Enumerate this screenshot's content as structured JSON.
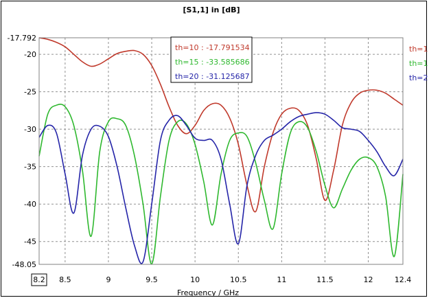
{
  "chart_data": {
    "type": "line",
    "title": "[S1,1] in [dB]",
    "xlabel": "Frequency / GHz",
    "ylabel": "",
    "xlim": [
      8.2,
      12.4
    ],
    "ylim": [
      -48.05,
      -17.792
    ],
    "x_ticks": [
      "8.2",
      "8.5",
      "9",
      "9.5",
      "10",
      "10.5",
      "11",
      "11.5",
      "12",
      "12.4"
    ],
    "x_tick_values": [
      8.2,
      8.5,
      9,
      9.5,
      10,
      10.5,
      11,
      11.5,
      12,
      12.4
    ],
    "y_ticks": [
      "-17.792",
      "-20",
      "-25",
      "-30",
      "-35",
      "-40",
      "-45",
      "-48.05"
    ],
    "y_tick_values": [
      -17.792,
      -20,
      -25,
      -30,
      -35,
      -40,
      -45,
      -48.05
    ],
    "grid": true,
    "legend_position": "right",
    "annotation_box": [
      {
        "text": "th=10 : -17.791534",
        "color": "#c0392b"
      },
      {
        "text": "th=15 : -33.585686",
        "color": "#2eb82e"
      },
      {
        "text": "th=20 : -31.125687",
        "color": "#2424a8"
      }
    ],
    "series": [
      {
        "name": "th=10",
        "color": "#c0392b",
        "x": [
          8.2,
          8.3,
          8.4,
          8.5,
          8.6,
          8.7,
          8.8,
          8.9,
          9.0,
          9.1,
          9.2,
          9.3,
          9.4,
          9.5,
          9.6,
          9.7,
          9.8,
          9.9,
          10.0,
          10.1,
          10.2,
          10.3,
          10.4,
          10.5,
          10.6,
          10.7,
          10.8,
          10.9,
          11.0,
          11.1,
          11.2,
          11.3,
          11.4,
          11.5,
          11.6,
          11.7,
          11.8,
          11.9,
          12.0,
          12.1,
          12.2,
          12.3,
          12.4
        ],
        "y": [
          -17.79,
          -18.0,
          -18.4,
          -19.0,
          -20.0,
          -21.0,
          -21.6,
          -21.3,
          -20.6,
          -19.9,
          -19.6,
          -19.5,
          -20.0,
          -21.5,
          -24.0,
          -27.0,
          -29.5,
          -30.6,
          -29.5,
          -27.5,
          -26.6,
          -26.8,
          -28.5,
          -32.0,
          -37.5,
          -41.0,
          -35.0,
          -30.5,
          -28.0,
          -27.2,
          -27.5,
          -29.5,
          -34.0,
          -39.5,
          -35.5,
          -29.5,
          -26.5,
          -25.2,
          -24.8,
          -24.8,
          -25.2,
          -26.0,
          -26.8
        ]
      },
      {
        "name": "th=15",
        "color": "#2eb82e",
        "x": [
          8.2,
          8.3,
          8.4,
          8.5,
          8.6,
          8.7,
          8.8,
          8.9,
          9.0,
          9.1,
          9.2,
          9.3,
          9.4,
          9.5,
          9.6,
          9.7,
          9.8,
          9.9,
          10.0,
          10.1,
          10.2,
          10.3,
          10.4,
          10.5,
          10.6,
          10.7,
          10.8,
          10.9,
          11.0,
          11.1,
          11.2,
          11.3,
          11.4,
          11.5,
          11.6,
          11.7,
          11.8,
          11.9,
          12.0,
          12.1,
          12.2,
          12.3,
          12.4
        ],
        "y": [
          -33.6,
          -28.0,
          -26.8,
          -27.0,
          -29.5,
          -35.5,
          -44.3,
          -33.0,
          -29.0,
          -28.6,
          -29.5,
          -33.5,
          -40.0,
          -48.0,
          -39.0,
          -31.5,
          -29.0,
          -29.3,
          -32.0,
          -37.0,
          -42.8,
          -36.0,
          -31.5,
          -30.5,
          -31.0,
          -34.5,
          -39.5,
          -43.3,
          -36.0,
          -30.5,
          -29.0,
          -29.8,
          -33.0,
          -37.5,
          -40.5,
          -38.0,
          -35.5,
          -34.0,
          -33.8,
          -35.0,
          -39.0,
          -47.0,
          -36.0
        ]
      },
      {
        "name": "th=20",
        "color": "#2424a8",
        "x": [
          8.2,
          8.3,
          8.4,
          8.5,
          8.6,
          8.7,
          8.8,
          8.9,
          9.0,
          9.1,
          9.2,
          9.3,
          9.4,
          9.5,
          9.6,
          9.7,
          9.8,
          9.9,
          10.0,
          10.1,
          10.2,
          10.3,
          10.4,
          10.5,
          10.6,
          10.7,
          10.8,
          10.9,
          11.0,
          11.1,
          11.2,
          11.3,
          11.4,
          11.5,
          11.6,
          11.7,
          11.8,
          11.9,
          12.0,
          12.1,
          12.2,
          12.3,
          12.4
        ],
        "y": [
          -31.1,
          -29.5,
          -30.5,
          -36.0,
          -41.2,
          -33.5,
          -30.0,
          -29.6,
          -31.0,
          -35.0,
          -40.5,
          -45.5,
          -47.7,
          -40.0,
          -31.5,
          -28.8,
          -28.2,
          -29.5,
          -31.2,
          -31.5,
          -31.5,
          -34.0,
          -40.0,
          -45.3,
          -37.5,
          -33.5,
          -31.5,
          -30.8,
          -30.0,
          -29.0,
          -28.3,
          -28.0,
          -27.8,
          -28.0,
          -28.8,
          -29.8,
          -30.0,
          -30.3,
          -31.5,
          -33.0,
          -35.0,
          -36.2,
          -34.0
        ]
      }
    ]
  }
}
